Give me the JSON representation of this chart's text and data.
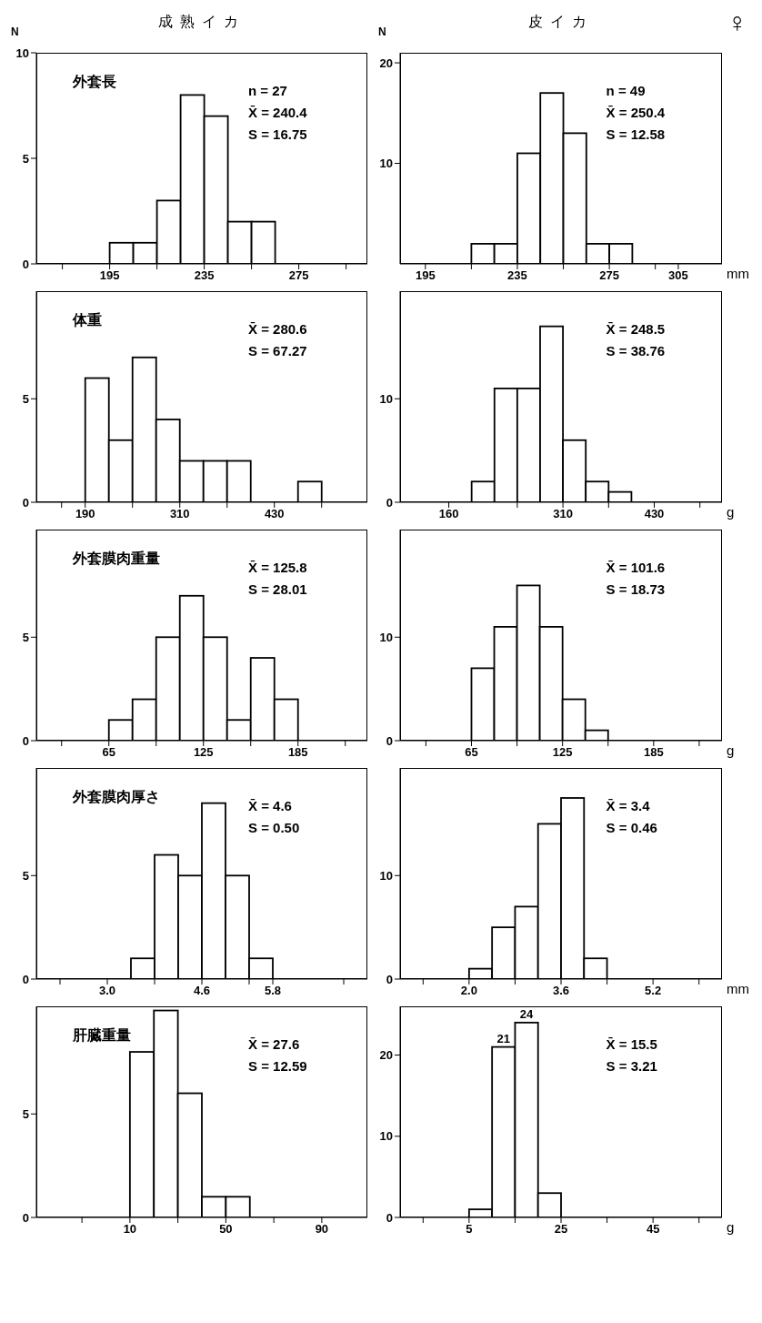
{
  "chart_data": [
    {
      "type": "histogram",
      "title": "成熟イカ",
      "subtitle": "外套長",
      "ylabel": "N",
      "color": "#000000",
      "bins": [
        195,
        205,
        215,
        225,
        235,
        245,
        255,
        265
      ],
      "values": [
        1,
        1,
        3,
        8,
        7,
        2,
        2
      ],
      "xlim": [
        164,
        304
      ],
      "xticks": [
        {
          "value": 175,
          "label": null
        },
        195,
        {
          "value": 215,
          "label": null
        },
        235,
        {
          "value": 255,
          "label": null
        },
        275,
        {
          "value": 295,
          "label": null
        }
      ],
      "ylim": [
        0,
        10
      ],
      "yticks": [
        0,
        5,
        10
      ],
      "annotations": [
        "n = 27",
        "X̄ = 240.4",
        "S = 16.75"
      ]
    },
    {
      "type": "histogram",
      "title": "皮イカ",
      "subtitle": "♀",
      "ylabel": "N",
      "xlabel": "mm",
      "color": "#000000",
      "bins": [
        215,
        225,
        235,
        245,
        255,
        265,
        275,
        285
      ],
      "values": [
        2,
        2,
        11,
        17,
        13,
        2,
        2
      ],
      "xlim": [
        184,
        324
      ],
      "xticks": [
        195,
        {
          "value": 215,
          "label": null
        },
        235,
        {
          "value": 255,
          "label": null
        },
        275,
        {
          "value": 295,
          "label": null
        },
        305
      ],
      "ylim": [
        0,
        21
      ],
      "yticks": [
        10,
        20
      ],
      "annotations": [
        "n = 49",
        "X̄ = 250.4",
        "S = 12.58"
      ]
    },
    {
      "type": "histogram",
      "subtitle": "体重",
      "color": "#000000",
      "bins": [
        190,
        220,
        250,
        280,
        310,
        340,
        370,
        400,
        430,
        460,
        490
      ],
      "values": [
        6,
        3,
        7,
        4,
        2,
        2,
        2,
        0,
        0,
        1
      ],
      "xlim": [
        128,
        548
      ],
      "xticks": [
        {
          "value": 160,
          "label": null
        },
        190,
        {
          "value": 250,
          "label": null
        },
        310,
        {
          "value": 370,
          "label": null
        },
        430,
        {
          "value": 490,
          "label": null
        }
      ],
      "ylim": [
        0,
        10.2
      ],
      "yticks": [
        0,
        5
      ],
      "annotations": [
        "X̄ = 280.6",
        "S = 67.27"
      ]
    },
    {
      "type": "histogram",
      "xlabel": "g",
      "color": "#000000",
      "bins": [
        190,
        220,
        250,
        280,
        310,
        340,
        370,
        400
      ],
      "values": [
        2,
        11,
        11,
        17,
        6,
        2,
        1
      ],
      "xlim": [
        96,
        519
      ],
      "xticks": [
        160,
        {
          "value": 250,
          "label": null
        },
        310,
        {
          "value": 370,
          "label": null
        },
        430,
        {
          "value": 490,
          "label": null
        }
      ],
      "ylim": [
        0,
        20.4
      ],
      "yticks": [
        0,
        10
      ],
      "annotations": [
        "X̄ = 248.5",
        "S = 38.76"
      ]
    },
    {
      "type": "histogram",
      "subtitle": "外套膜肉重量",
      "color": "#000000",
      "bins": [
        65,
        80,
        95,
        110,
        125,
        140,
        155,
        170,
        185
      ],
      "values": [
        1,
        2,
        5,
        7,
        5,
        1,
        4,
        2
      ],
      "xlim": [
        19,
        229
      ],
      "xticks": [
        {
          "value": 35,
          "label": null
        },
        65,
        {
          "value": 95,
          "label": null
        },
        125,
        {
          "value": 155,
          "label": null
        },
        185,
        {
          "value": 215,
          "label": null
        }
      ],
      "ylim": [
        0,
        10.2
      ],
      "yticks": [
        0,
        5
      ],
      "annotations": [
        "X̄ = 125.8",
        "S = 28.01"
      ]
    },
    {
      "type": "histogram",
      "xlabel": "g",
      "color": "#000000",
      "bins": [
        65,
        80,
        95,
        110,
        125,
        140,
        155
      ],
      "values": [
        7,
        11,
        15,
        11,
        4,
        1
      ],
      "xlim": [
        18,
        230
      ],
      "xticks": [
        {
          "value": 35,
          "label": null
        },
        65,
        {
          "value": 95,
          "label": null
        },
        125,
        {
          "value": 155,
          "label": null
        },
        185,
        {
          "value": 215,
          "label": null
        }
      ],
      "ylim": [
        0,
        20.4
      ],
      "yticks": [
        0,
        10
      ],
      "annotations": [
        "X̄ = 101.6",
        "S = 18.73"
      ]
    },
    {
      "type": "histogram",
      "subtitle": "外套膜肉厚さ",
      "color": "#000000",
      "bins": [
        3.4,
        3.8,
        4.2,
        4.6,
        5.0,
        5.4,
        5.8
      ],
      "values": [
        1,
        6,
        5,
        8.5,
        5,
        1
      ],
      "xlim": [
        1.8,
        7.4
      ],
      "xticks": [
        {
          "value": 2.2,
          "label": null
        },
        {
          "value": 3,
          "label": "3.0"
        },
        {
          "value": 3.8,
          "label": null
        },
        4.6,
        {
          "value": 5.4,
          "label": null
        },
        5.8,
        {
          "value": 7,
          "label": null
        }
      ],
      "ylim": [
        0,
        10.2
      ],
      "yticks": [
        0,
        5
      ],
      "annotations": [
        "X̄ = 4.6",
        "S = 0.50"
      ]
    },
    {
      "type": "histogram",
      "xlabel": "mm",
      "color": "#000000",
      "bins": [
        2.0,
        2.4,
        2.8,
        3.2,
        3.6,
        4.0,
        4.4
      ],
      "values": [
        1,
        5,
        7,
        15,
        17.5,
        2
      ],
      "xlim": [
        0.8,
        6.4
      ],
      "xticks": [
        {
          "value": 1.2,
          "label": null
        },
        {
          "value": 2,
          "label": "2.0"
        },
        {
          "value": 2.8,
          "label": null
        },
        3.6,
        {
          "value": 4.4,
          "label": null
        },
        5.2,
        {
          "value": 6,
          "label": null
        }
      ],
      "ylim": [
        0,
        20.4
      ],
      "yticks": [
        0,
        10
      ],
      "annotations": [
        "X̄ = 3.4",
        "S = 0.46"
      ]
    },
    {
      "type": "histogram",
      "subtitle": "肝臓重量",
      "color": "#000000",
      "bins": [
        10,
        20,
        30,
        40,
        50,
        60
      ],
      "values": [
        8,
        10,
        6,
        1,
        1
      ],
      "xlim": [
        -29,
        109
      ],
      "xticks": [
        {
          "value": -10,
          "label": null
        },
        10,
        {
          "value": 30,
          "label": null
        },
        50,
        {
          "value": 70,
          "label": null
        },
        90
      ],
      "ylim": [
        0,
        10.2
      ],
      "yticks": [
        0,
        5
      ],
      "annotations": [
        "X̄ = 27.6",
        "S = 12.59"
      ]
    },
    {
      "type": "histogram",
      "xlabel": "g",
      "color": "#000000",
      "bins": [
        5,
        10,
        15,
        20,
        25
      ],
      "values": [
        1,
        21,
        24,
        3
      ],
      "value_labels": [
        null,
        "21",
        "24",
        null
      ],
      "xlim": [
        -10,
        60
      ],
      "xticks": [
        {
          "value": -5,
          "label": null
        },
        5,
        {
          "value": 15,
          "label": null
        },
        25,
        {
          "value": 35,
          "label": null
        },
        45,
        {
          "value": 55,
          "label": null
        }
      ],
      "ylim": [
        0,
        26
      ],
      "yticks": [
        0,
        10,
        20
      ],
      "annotations": [
        "X̄ = 15.5",
        "S = 3.21"
      ]
    }
  ]
}
